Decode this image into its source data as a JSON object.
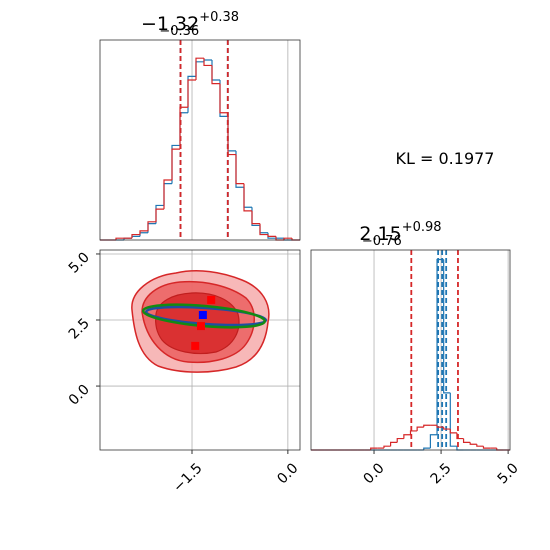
{
  "annotation": "KL = 0.1977",
  "chart_data": [
    {
      "type": "histogram",
      "title": "−1.32",
      "title_sup": "+0.38",
      "title_sub": "−0.36",
      "bins": [
        -2.94,
        -2.8148,
        -2.6896,
        -2.5644,
        -2.4392,
        -2.314,
        -2.1888,
        -2.0636,
        -1.9384,
        -1.8132,
        -1.688,
        -1.5628,
        -1.4376,
        -1.3124,
        -1.1872,
        -1.062,
        -0.9368,
        -0.8116,
        -0.6864,
        -0.5612,
        -0.436,
        -0.3108,
        -0.1856,
        -0.0604,
        0.0648,
        0.19
      ],
      "series": [
        {
          "color": "#1f77b4",
          "values": [
            0,
            0,
            0,
            1,
            2,
            4,
            9,
            19,
            31,
            52,
            70,
            90,
            98,
            99,
            88,
            68,
            49,
            29,
            18,
            8,
            4,
            1,
            1,
            0,
            0
          ],
          "quantiles": [
            -1.68,
            -0.94
          ]
        },
        {
          "color": "#d62728",
          "values": [
            0,
            0,
            1,
            1,
            3,
            5,
            10,
            17,
            33,
            50,
            73,
            88,
            100,
            96,
            86,
            70,
            47,
            31,
            16,
            9,
            3,
            2,
            0,
            1,
            0
          ],
          "quantiles": [
            -1.68,
            -0.94
          ]
        }
      ],
      "xlim": [
        -2.94,
        0.19
      ],
      "ylim": [
        0,
        110
      ],
      "xticks": [
        -1.5,
        0
      ],
      "grid": true
    },
    {
      "type": "scatter",
      "series": [
        {
          "color": "#ff0000",
          "x": [
            -1.2,
            -1.36,
            -1.45
          ],
          "y": [
            3.26,
            2.27,
            1.52
          ]
        },
        {
          "color": "#0000ff",
          "x": [
            -1.33
          ],
          "y": [
            2.69
          ]
        }
      ],
      "xlim": [
        -2.94,
        0.19
      ],
      "ylim": [
        -2.42,
        5.15
      ],
      "xticks": [
        {
          "value": -1.5,
          "label": "−1.5"
        },
        {
          "value": 0,
          "label": "0.0"
        }
      ],
      "yticks": [
        {
          "value": 0,
          "label": "0.0"
        },
        {
          "value": 2.5,
          "label": "2.5"
        },
        {
          "value": 5,
          "label": "5.0"
        }
      ],
      "grid": true
    },
    {
      "type": "histogram",
      "title": "2.15",
      "title_sup": "+0.98",
      "title_sub": "−0.76",
      "bins": [
        -2.35,
        -2.1027,
        -1.8553,
        -1.608,
        -1.3607,
        -1.1133,
        -0.866,
        -0.6187,
        -0.3713,
        -0.124,
        0.1233,
        0.3707,
        0.618,
        0.8653,
        1.1127,
        1.36,
        1.6073,
        1.8547,
        2.102,
        2.3493,
        2.5967,
        2.844,
        3.0913,
        3.3387,
        3.586,
        3.8333,
        4.0807,
        4.328,
        4.5753,
        4.8227,
        5.07
      ],
      "series": [
        {
          "color": "#1f77b4",
          "values": [
            0,
            0,
            0,
            0,
            0,
            0,
            0,
            0,
            0,
            0,
            0,
            0,
            0,
            0,
            0,
            0,
            0,
            1,
            8,
            100,
            30,
            2,
            0,
            0,
            0,
            0,
            0,
            0,
            0,
            0
          ],
          "quantiles": [
            2.39,
            2.54,
            2.69
          ]
        },
        {
          "color": "#d62728",
          "values": [
            0,
            0,
            0,
            0,
            0,
            0,
            0,
            0,
            0,
            1,
            1,
            2,
            4,
            6,
            8,
            10,
            12,
            13,
            13,
            12,
            11,
            9,
            6,
            4,
            3,
            2,
            1,
            1,
            0,
            0
          ],
          "quantiles": [
            1.39,
            3.13
          ]
        }
      ],
      "xlim": [
        -2.35,
        5.07
      ],
      "ylim": [
        0,
        105
      ],
      "xticks": [
        {
          "value": 0,
          "label": "0.0"
        },
        {
          "value": 2.5,
          "label": "2.5"
        },
        {
          "value": 5,
          "label": "5.0"
        }
      ],
      "grid": true
    }
  ]
}
